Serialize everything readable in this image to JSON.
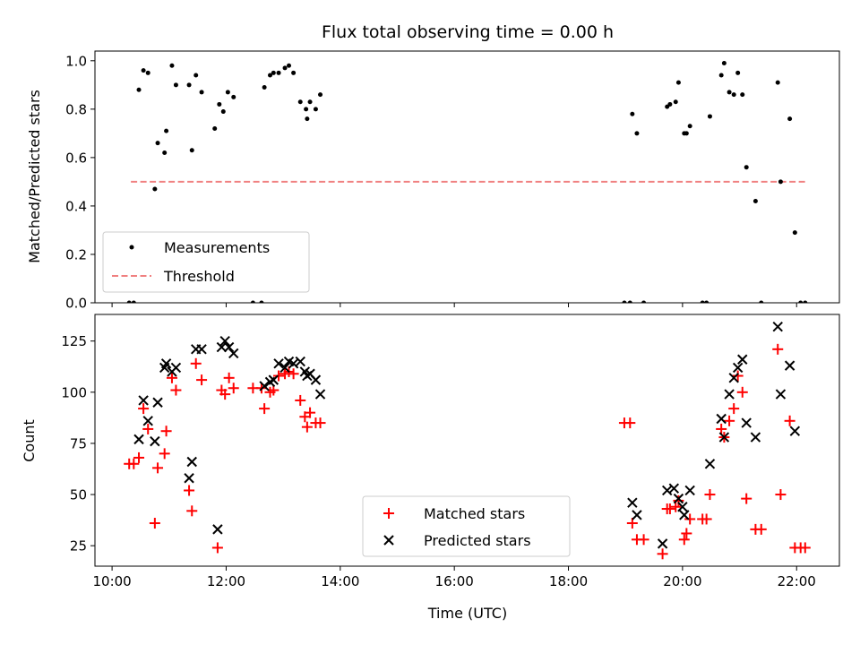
{
  "title": "Flux total observing time = 0.00 h",
  "chart_data": [
    {
      "type": "scatter",
      "name": "ratio-panel",
      "ylabel": "Matched/Predicted stars",
      "xlabel": "",
      "xlim": [
        9.7,
        22.75
      ],
      "ylim": [
        0,
        1.04
      ],
      "yticks": [
        "0.0",
        "0.2",
        "0.4",
        "0.6",
        "0.8",
        "1.0"
      ],
      "ytick_values": [
        0,
        0.2,
        0.4,
        0.6,
        0.8,
        1.0
      ],
      "xtick_values": [
        10,
        12,
        14,
        16,
        18,
        20,
        22
      ],
      "legend_position": "lower-left",
      "legend": [
        "Measurements",
        "Threshold"
      ],
      "threshold": {
        "value": 0.5,
        "x_range": [
          10.33,
          22.15
        ],
        "color": "#f08080"
      },
      "series": [
        {
          "legend_index": 0,
          "marker": "dot",
          "color": "#000000",
          "points": [
            [
              10.3,
              0.0
            ],
            [
              10.38,
              0.0
            ],
            [
              10.47,
              0.88
            ],
            [
              10.55,
              0.96
            ],
            [
              10.63,
              0.95
            ],
            [
              10.75,
              0.47
            ],
            [
              10.8,
              0.66
            ],
            [
              10.92,
              0.62
            ],
            [
              10.95,
              0.71
            ],
            [
              11.05,
              0.98
            ],
            [
              11.12,
              0.9
            ],
            [
              11.35,
              0.9
            ],
            [
              11.4,
              0.63
            ],
            [
              11.47,
              0.94
            ],
            [
              11.57,
              0.87
            ],
            [
              11.8,
              0.72
            ],
            [
              11.88,
              0.82
            ],
            [
              11.95,
              0.79
            ],
            [
              12.03,
              0.87
            ],
            [
              12.13,
              0.85
            ],
            [
              12.47,
              0.0
            ],
            [
              12.62,
              0.0
            ],
            [
              12.67,
              0.89
            ],
            [
              12.77,
              0.94
            ],
            [
              12.83,
              0.95
            ],
            [
              12.92,
              0.95
            ],
            [
              13.03,
              0.97
            ],
            [
              13.1,
              0.98
            ],
            [
              13.18,
              0.95
            ],
            [
              13.3,
              0.83
            ],
            [
              13.4,
              0.8
            ],
            [
              13.42,
              0.76
            ],
            [
              13.47,
              0.83
            ],
            [
              13.57,
              0.8
            ],
            [
              13.65,
              0.86
            ],
            [
              18.98,
              0.0
            ],
            [
              19.08,
              0.0
            ],
            [
              19.12,
              0.78
            ],
            [
              19.2,
              0.7
            ],
            [
              19.32,
              0.0
            ],
            [
              19.73,
              0.81
            ],
            [
              19.78,
              0.82
            ],
            [
              19.88,
              0.83
            ],
            [
              19.93,
              0.91
            ],
            [
              20.03,
              0.7
            ],
            [
              20.07,
              0.7
            ],
            [
              20.13,
              0.73
            ],
            [
              20.35,
              0.0
            ],
            [
              20.42,
              0.0
            ],
            [
              20.48,
              0.77
            ],
            [
              20.68,
              0.94
            ],
            [
              20.73,
              0.99
            ],
            [
              20.82,
              0.87
            ],
            [
              20.9,
              0.86
            ],
            [
              20.97,
              0.95
            ],
            [
              21.05,
              0.86
            ],
            [
              21.12,
              0.56
            ],
            [
              21.28,
              0.42
            ],
            [
              21.38,
              0.0
            ],
            [
              21.67,
              0.91
            ],
            [
              21.72,
              0.5
            ],
            [
              21.88,
              0.76
            ],
            [
              21.97,
              0.29
            ],
            [
              22.07,
              0.0
            ],
            [
              22.15,
              0.0
            ]
          ]
        }
      ]
    },
    {
      "type": "scatter",
      "name": "count-panel",
      "ylabel": "Count",
      "xlabel": "Time (UTC)",
      "xlim": [
        9.7,
        22.75
      ],
      "ylim": [
        15,
        138
      ],
      "yticks": [
        "25",
        "50",
        "75",
        "100",
        "125"
      ],
      "ytick_values": [
        25,
        50,
        75,
        100,
        125
      ],
      "xticks": [
        "10:00",
        "12:00",
        "14:00",
        "16:00",
        "18:00",
        "20:00",
        "22:00"
      ],
      "xtick_values": [
        10,
        12,
        14,
        16,
        18,
        20,
        22
      ],
      "legend_position": "lower-center",
      "legend": [
        "Matched stars",
        "Predicted stars"
      ],
      "series": [
        {
          "legend_index": 0,
          "marker": "plus",
          "color": "#ff0000",
          "points": [
            [
              10.3,
              65
            ],
            [
              10.38,
              65
            ],
            [
              10.47,
              68
            ],
            [
              10.55,
              92
            ],
            [
              10.63,
              82
            ],
            [
              10.75,
              36
            ],
            [
              10.8,
              63
            ],
            [
              10.92,
              70
            ],
            [
              10.95,
              81
            ],
            [
              11.05,
              107
            ],
            [
              11.12,
              101
            ],
            [
              11.35,
              52
            ],
            [
              11.4,
              42
            ],
            [
              11.47,
              114
            ],
            [
              11.57,
              106
            ],
            [
              11.85,
              24
            ],
            [
              11.92,
              101
            ],
            [
              11.98,
              99
            ],
            [
              12.05,
              107
            ],
            [
              12.13,
              102
            ],
            [
              12.47,
              102
            ],
            [
              12.62,
              102
            ],
            [
              12.67,
              92
            ],
            [
              12.77,
              100
            ],
            [
              12.83,
              101
            ],
            [
              12.92,
              108
            ],
            [
              13.03,
              109
            ],
            [
              13.1,
              110
            ],
            [
              13.18,
              109
            ],
            [
              13.3,
              96
            ],
            [
              13.38,
              88
            ],
            [
              13.42,
              83
            ],
            [
              13.47,
              90
            ],
            [
              13.57,
              85
            ],
            [
              13.65,
              85
            ],
            [
              18.98,
              85
            ],
            [
              19.08,
              85
            ],
            [
              19.12,
              36
            ],
            [
              19.2,
              28
            ],
            [
              19.32,
              28
            ],
            [
              19.65,
              21
            ],
            [
              19.73,
              43
            ],
            [
              19.78,
              43
            ],
            [
              19.88,
              44
            ],
            [
              19.93,
              47
            ],
            [
              20.03,
              28
            ],
            [
              20.07,
              31
            ],
            [
              20.13,
              38
            ],
            [
              20.35,
              38
            ],
            [
              20.42,
              38
            ],
            [
              20.48,
              50
            ],
            [
              20.68,
              82
            ],
            [
              20.73,
              78
            ],
            [
              20.82,
              86
            ],
            [
              20.9,
              92
            ],
            [
              20.97,
              108
            ],
            [
              21.05,
              100
            ],
            [
              21.12,
              48
            ],
            [
              21.28,
              33
            ],
            [
              21.38,
              33
            ],
            [
              21.67,
              121
            ],
            [
              21.72,
              50
            ],
            [
              21.88,
              86
            ],
            [
              21.97,
              24
            ],
            [
              22.07,
              24
            ],
            [
              22.15,
              24
            ]
          ]
        },
        {
          "legend_index": 1,
          "marker": "cross",
          "color": "#000000",
          "points": [
            [
              10.47,
              77
            ],
            [
              10.55,
              96
            ],
            [
              10.63,
              86
            ],
            [
              10.75,
              76
            ],
            [
              10.8,
              95
            ],
            [
              10.92,
              112
            ],
            [
              10.95,
              114
            ],
            [
              11.05,
              110
            ],
            [
              11.12,
              112
            ],
            [
              11.35,
              58
            ],
            [
              11.4,
              66
            ],
            [
              11.47,
              121
            ],
            [
              11.57,
              121
            ],
            [
              11.85,
              33
            ],
            [
              11.92,
              122
            ],
            [
              11.98,
              125
            ],
            [
              12.05,
              122
            ],
            [
              12.13,
              119
            ],
            [
              12.67,
              103
            ],
            [
              12.77,
              105
            ],
            [
              12.83,
              106
            ],
            [
              12.92,
              114
            ],
            [
              13.03,
              112
            ],
            [
              13.1,
              115
            ],
            [
              13.18,
              114
            ],
            [
              13.3,
              115
            ],
            [
              13.38,
              110
            ],
            [
              13.42,
              108
            ],
            [
              13.47,
              109
            ],
            [
              13.57,
              106
            ],
            [
              13.65,
              99
            ],
            [
              19.12,
              46
            ],
            [
              19.2,
              40
            ],
            [
              19.65,
              26
            ],
            [
              19.73,
              52
            ],
            [
              19.85,
              53
            ],
            [
              19.93,
              48
            ],
            [
              20.0,
              44
            ],
            [
              20.03,
              40
            ],
            [
              20.13,
              52
            ],
            [
              20.48,
              65
            ],
            [
              20.68,
              87
            ],
            [
              20.73,
              78
            ],
            [
              20.82,
              99
            ],
            [
              20.9,
              107
            ],
            [
              20.97,
              112
            ],
            [
              21.05,
              116
            ],
            [
              21.12,
              85
            ],
            [
              21.28,
              78
            ],
            [
              21.67,
              132
            ],
            [
              21.72,
              99
            ],
            [
              21.88,
              113
            ],
            [
              21.97,
              81
            ]
          ]
        }
      ]
    }
  ]
}
